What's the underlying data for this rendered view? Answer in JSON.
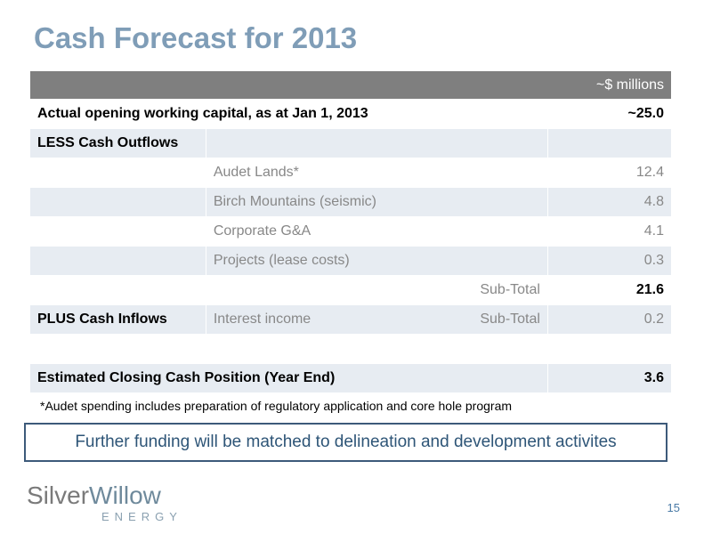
{
  "title": "Cash Forecast for 2013",
  "table": {
    "unit_header": "~$ millions",
    "opening": {
      "label": "Actual opening working capital, as at  Jan 1, 2013",
      "value": "~25.0"
    },
    "outflows_label": "LESS Cash Outflows",
    "outflows": [
      {
        "item": "Audet Lands*",
        "value": "12.4"
      },
      {
        "item": "Birch Mountains (seismic)",
        "value": "4.8"
      },
      {
        "item": "Corporate G&A",
        "value": "4.1"
      },
      {
        "item": "Projects (lease costs)",
        "value": "0.3"
      }
    ],
    "outflows_subtotal": {
      "label": "Sub-Total",
      "value": "21.6"
    },
    "inflows": {
      "label": "PLUS Cash Inflows",
      "item": "Interest income",
      "subtotal_label": "Sub-Total",
      "value": "0.2"
    },
    "closing": {
      "label": "Estimated Closing Cash Position (Year End)",
      "value": "3.6"
    }
  },
  "footnote": "*Audet spending includes preparation of regulatory application and core hole program",
  "callout": "Further funding will be matched to delineation and development activites",
  "logo": {
    "part1": "Silver",
    "part2": "Willow",
    "sub": "ENERGY"
  },
  "page_number": "15",
  "colors": {
    "title": "#7f9db7",
    "header_bg": "#7f7f7f",
    "row_shade": "#e7ecf2",
    "callout_border": "#3d5a7a"
  }
}
